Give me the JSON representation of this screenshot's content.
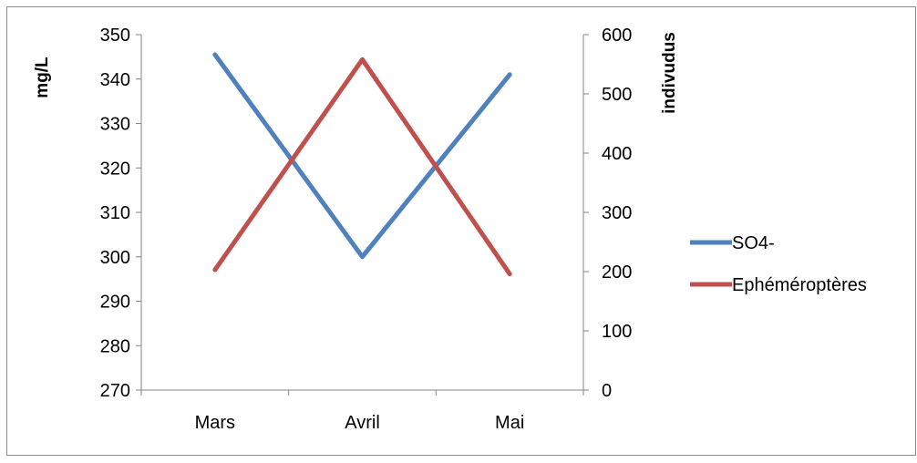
{
  "chart_data": {
    "type": "line",
    "categories": [
      "Mars",
      "Avril",
      "Mai"
    ],
    "series": [
      {
        "name": "SO4-",
        "axis": "left",
        "color": "#4F81BD",
        "values": [
          345.5,
          300,
          341
        ]
      },
      {
        "name": "Ephéméroptères",
        "axis": "right",
        "color": "#C0504D",
        "values": [
          203,
          558,
          196
        ]
      }
    ],
    "ylabel_left": "mg/L",
    "ylabel_right": "indivudus",
    "ylim_left": [
      270,
      350
    ],
    "yticks_left": [
      270,
      280,
      290,
      300,
      310,
      320,
      330,
      340,
      350
    ],
    "ylim_right": [
      0,
      600
    ],
    "yticks_right": [
      0,
      100,
      200,
      300,
      400,
      500,
      600
    ],
    "grid": false,
    "legend_position": "right"
  }
}
